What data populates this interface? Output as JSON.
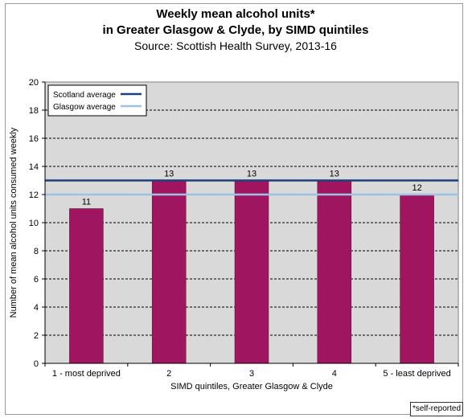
{
  "chart_data": {
    "type": "bar",
    "title": [
      "Weekly mean alcohol units*",
      "in Greater Glasgow & Clyde, by SIMD quintiles"
    ],
    "subtitle": "Source: Scottish Health Survey, 2013-16",
    "categories": [
      "1 - most deprived",
      "2",
      "3",
      "4",
      "5 - least deprived"
    ],
    "values": [
      11,
      13,
      13,
      13,
      12
    ],
    "data_labels": [
      "11",
      "13",
      "13",
      "13",
      "12"
    ],
    "xlabel": "SIMD quintiles, Greater Glasgow & Clyde",
    "ylabel": "Number of mean alcohol units consumed weekly",
    "ylim": [
      0,
      20
    ],
    "yticks": [
      0,
      2,
      4,
      6,
      8,
      10,
      12,
      14,
      16,
      18,
      20
    ],
    "grid": true,
    "reference_lines": [
      {
        "name": "Scotland average",
        "value": 13,
        "color": "#1f3f7a"
      },
      {
        "name": "Glasgow average",
        "value": 12,
        "color": "#9cc3e6"
      }
    ],
    "legend_position": "top-left",
    "bar_color": "#a0155f",
    "plot_background": "#d9d9d9",
    "footnote": "*self-reported"
  }
}
